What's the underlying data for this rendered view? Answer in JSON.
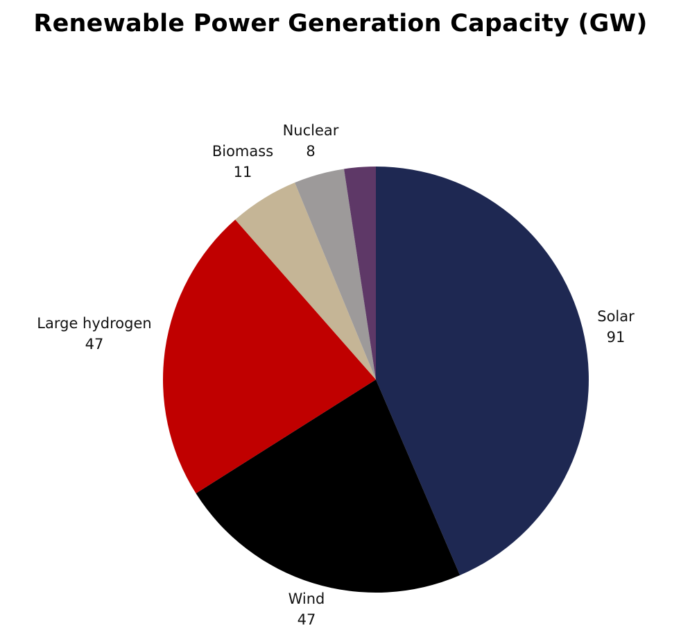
{
  "chart_data": {
    "type": "pie",
    "title": "Renewable Power Generation Capacity (GW)",
    "slices": [
      {
        "label": "Solar",
        "value": 91,
        "color": "#1e2852"
      },
      {
        "label": "Wind",
        "value": 47,
        "color": "#000000"
      },
      {
        "label": "Large hydrogen",
        "value": 47,
        "color": "#c00000"
      },
      {
        "label": "Biomass",
        "value": 11,
        "color": "#c5b596"
      },
      {
        "label": "Nuclear",
        "value": 8,
        "color": "#9d9a9a"
      },
      {
        "label": "",
        "value": 5,
        "color": "#5e3867"
      }
    ],
    "legend": "none"
  }
}
